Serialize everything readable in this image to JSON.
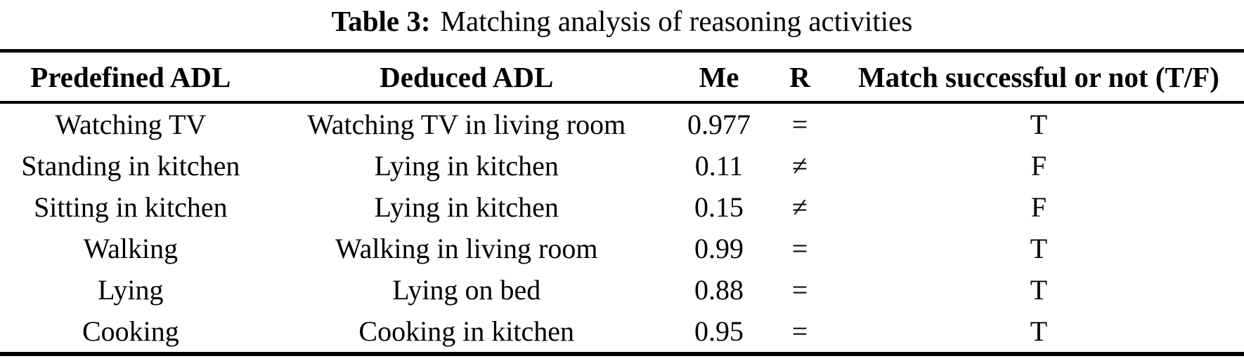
{
  "caption": {
    "label": "Table 3:",
    "text": "Matching analysis of reasoning activities"
  },
  "table": {
    "columns": [
      "Predefined ADL",
      "Deduced ADL",
      "Me",
      "R",
      "Match successful or not (T/F)"
    ],
    "rows": [
      {
        "predefined": "Watching TV",
        "deduced": "Watching TV in living room",
        "me": "0.977",
        "r": "=",
        "match": "T"
      },
      {
        "predefined": "Standing in kitchen",
        "deduced": "Lying in kitchen",
        "me": "0.11",
        "r": "≠",
        "match": "F"
      },
      {
        "predefined": "Sitting in kitchen",
        "deduced": "Lying in kitchen",
        "me": "0.15",
        "r": "≠",
        "match": "F"
      },
      {
        "predefined": "Walking",
        "deduced": "Walking in living room",
        "me": "0.99",
        "r": "=",
        "match": "T"
      },
      {
        "predefined": "Lying",
        "deduced": "Lying on bed",
        "me": "0.88",
        "r": "=",
        "match": "T"
      },
      {
        "predefined": "Cooking",
        "deduced": "Cooking in kitchen",
        "me": "0.95",
        "r": "=",
        "match": "T"
      }
    ]
  },
  "colors": {
    "text": "#000000",
    "background": "#ffffff",
    "rule": "#000000"
  }
}
